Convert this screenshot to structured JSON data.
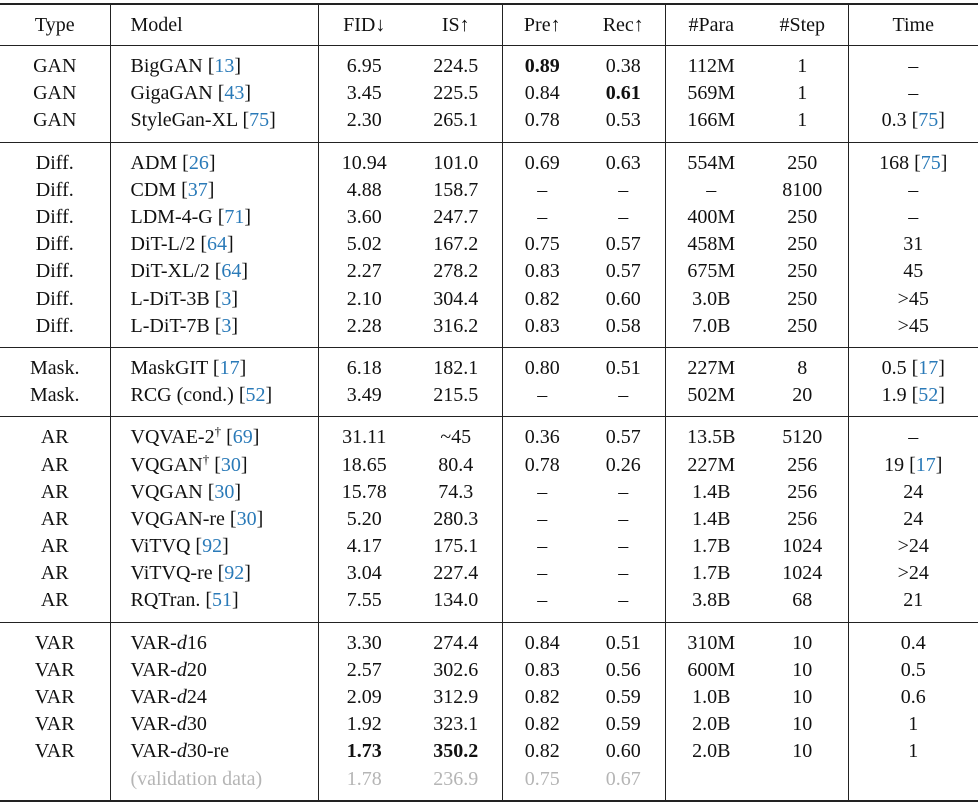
{
  "table": {
    "header": [
      "Type",
      "Model",
      "FID↓",
      "IS↑",
      "Pre↑",
      "Rec↑",
      "#Para",
      "#Step",
      "Time"
    ],
    "groups": [
      {
        "rows": [
          {
            "cells": [
              "GAN",
              [
                "BigGAN [",
                {
                  "text": "13",
                  "style": "cite"
                },
                "]"
              ],
              "6.95",
              "224.5",
              [
                {
                  "text": "0.89",
                  "style": "bold"
                }
              ],
              "0.38",
              "112M",
              "1",
              "–"
            ]
          },
          {
            "cells": [
              "GAN",
              [
                "GigaGAN [",
                {
                  "text": "43",
                  "style": "cite"
                },
                "]"
              ],
              "3.45",
              "225.5",
              "0.84",
              [
                {
                  "text": "0.61",
                  "style": "bold"
                }
              ],
              "569M",
              "1",
              "–"
            ]
          },
          {
            "cells": [
              "GAN",
              [
                "StyleGan-XL [",
                {
                  "text": "75",
                  "style": "cite"
                },
                "]"
              ],
              "2.30",
              "265.1",
              "0.78",
              "0.53",
              "166M",
              "1",
              [
                "0.3 [",
                {
                  "text": "75",
                  "style": "cite"
                },
                "]"
              ]
            ]
          }
        ]
      },
      {
        "rows": [
          {
            "cells": [
              "Diff.",
              [
                "ADM [",
                {
                  "text": "26",
                  "style": "cite"
                },
                "]"
              ],
              "10.94",
              "101.0",
              "0.69",
              "0.63",
              "554M",
              "250",
              [
                "168 [",
                {
                  "text": "75",
                  "style": "cite"
                },
                "]"
              ]
            ]
          },
          {
            "cells": [
              "Diff.",
              [
                "CDM [",
                {
                  "text": "37",
                  "style": "cite"
                },
                "]"
              ],
              "4.88",
              "158.7",
              "–",
              "–",
              "–",
              "8100",
              "–"
            ]
          },
          {
            "cells": [
              "Diff.",
              [
                "LDM-4-G [",
                {
                  "text": "71",
                  "style": "cite"
                },
                "]"
              ],
              "3.60",
              "247.7",
              "–",
              "–",
              "400M",
              "250",
              "–"
            ]
          },
          {
            "cells": [
              "Diff.",
              [
                "DiT-L/2 [",
                {
                  "text": "64",
                  "style": "cite"
                },
                "]"
              ],
              "5.02",
              "167.2",
              "0.75",
              "0.57",
              "458M",
              "250",
              "31"
            ]
          },
          {
            "cells": [
              "Diff.",
              [
                "DiT-XL/2 [",
                {
                  "text": "64",
                  "style": "cite"
                },
                "]"
              ],
              "2.27",
              "278.2",
              "0.83",
              "0.57",
              "675M",
              "250",
              "45"
            ]
          },
          {
            "cells": [
              "Diff.",
              [
                "L-DiT-3B [",
                {
                  "text": "3",
                  "style": "cite"
                },
                "]"
              ],
              "2.10",
              "304.4",
              "0.82",
              "0.60",
              "3.0B",
              "250",
              ">45"
            ]
          },
          {
            "cells": [
              "Diff.",
              [
                "L-DiT-7B [",
                {
                  "text": "3",
                  "style": "cite"
                },
                "]"
              ],
              "2.28",
              "316.2",
              "0.83",
              "0.58",
              "7.0B",
              "250",
              ">45"
            ]
          }
        ]
      },
      {
        "rows": [
          {
            "cells": [
              "Mask.",
              [
                "MaskGIT [",
                {
                  "text": "17",
                  "style": "cite"
                },
                "]"
              ],
              "6.18",
              "182.1",
              "0.80",
              "0.51",
              "227M",
              "8",
              [
                "0.5 [",
                {
                  "text": "17",
                  "style": "cite"
                },
                "]"
              ]
            ]
          },
          {
            "cells": [
              "Mask.",
              [
                "RCG (cond.) [",
                {
                  "text": "52",
                  "style": "cite"
                },
                "]"
              ],
              "3.49",
              "215.5",
              "–",
              "–",
              "502M",
              "20",
              [
                "1.9 [",
                {
                  "text": "52",
                  "style": "cite"
                },
                "]"
              ]
            ]
          }
        ]
      },
      {
        "rows": [
          {
            "cells": [
              "AR",
              [
                "VQVAE-2",
                {
                  "text": "†",
                  "style": "sup"
                },
                " [",
                {
                  "text": "69",
                  "style": "cite"
                },
                "]"
              ],
              "31.11",
              "~45",
              "0.36",
              "0.57",
              "13.5B",
              "5120",
              "–"
            ]
          },
          {
            "cells": [
              "AR",
              [
                "VQGAN",
                {
                  "text": "†",
                  "style": "sup"
                },
                " [",
                {
                  "text": "30",
                  "style": "cite"
                },
                "]"
              ],
              "18.65",
              "80.4",
              "0.78",
              "0.26",
              "227M",
              "256",
              [
                "19 [",
                {
                  "text": "17",
                  "style": "cite"
                },
                "]"
              ]
            ]
          },
          {
            "cells": [
              "AR",
              [
                "VQGAN [",
                {
                  "text": "30",
                  "style": "cite"
                },
                "]"
              ],
              "15.78",
              "74.3",
              "–",
              "–",
              "1.4B",
              "256",
              "24"
            ]
          },
          {
            "cells": [
              "AR",
              [
                "VQGAN-re [",
                {
                  "text": "30",
                  "style": "cite"
                },
                "]"
              ],
              "5.20",
              "280.3",
              "–",
              "–",
              "1.4B",
              "256",
              "24"
            ]
          },
          {
            "cells": [
              "AR",
              [
                "ViTVQ [",
                {
                  "text": "92",
                  "style": "cite"
                },
                "]"
              ],
              "4.17",
              "175.1",
              "–",
              "–",
              "1.7B",
              "1024",
              ">24"
            ]
          },
          {
            "cells": [
              "AR",
              [
                "ViTVQ-re [",
                {
                  "text": "92",
                  "style": "cite"
                },
                "]"
              ],
              "3.04",
              "227.4",
              "–",
              "–",
              "1.7B",
              "1024",
              ">24"
            ]
          },
          {
            "cells": [
              "AR",
              [
                "RQTran. [",
                {
                  "text": "51",
                  "style": "cite"
                },
                "]"
              ],
              "7.55",
              "134.0",
              "–",
              "–",
              "3.8B",
              "68",
              "21"
            ]
          }
        ]
      },
      {
        "rows": [
          {
            "cells": [
              "VAR",
              [
                "VAR-",
                {
                  "text": "d",
                  "style": "it"
                },
                "16"
              ],
              "3.30",
              "274.4",
              "0.84",
              "0.51",
              "310M",
              "10",
              "0.4"
            ]
          },
          {
            "cells": [
              "VAR",
              [
                "VAR-",
                {
                  "text": "d",
                  "style": "it"
                },
                "20"
              ],
              "2.57",
              "302.6",
              "0.83",
              "0.56",
              "600M",
              "10",
              "0.5"
            ]
          },
          {
            "cells": [
              "VAR",
              [
                "VAR-",
                {
                  "text": "d",
                  "style": "it"
                },
                "24"
              ],
              "2.09",
              "312.9",
              "0.82",
              "0.59",
              "1.0B",
              "10",
              "0.6"
            ]
          },
          {
            "cells": [
              "VAR",
              [
                "VAR-",
                {
                  "text": "d",
                  "style": "it"
                },
                "30"
              ],
              "1.92",
              "323.1",
              "0.82",
              "0.59",
              "2.0B",
              "10",
              "1"
            ]
          },
          {
            "cells": [
              "VAR",
              [
                "VAR-",
                {
                  "text": "d",
                  "style": "it"
                },
                "30-re"
              ],
              [
                {
                  "text": "1.73",
                  "style": "bold"
                }
              ],
              [
                {
                  "text": "350.2",
                  "style": "bold"
                }
              ],
              "0.82",
              "0.60",
              "2.0B",
              "10",
              "1"
            ]
          },
          {
            "muted": true,
            "cells": [
              null,
              "(validation data)",
              "1.78",
              "236.9",
              "0.75",
              "0.67",
              null,
              null,
              null
            ]
          }
        ]
      }
    ]
  }
}
